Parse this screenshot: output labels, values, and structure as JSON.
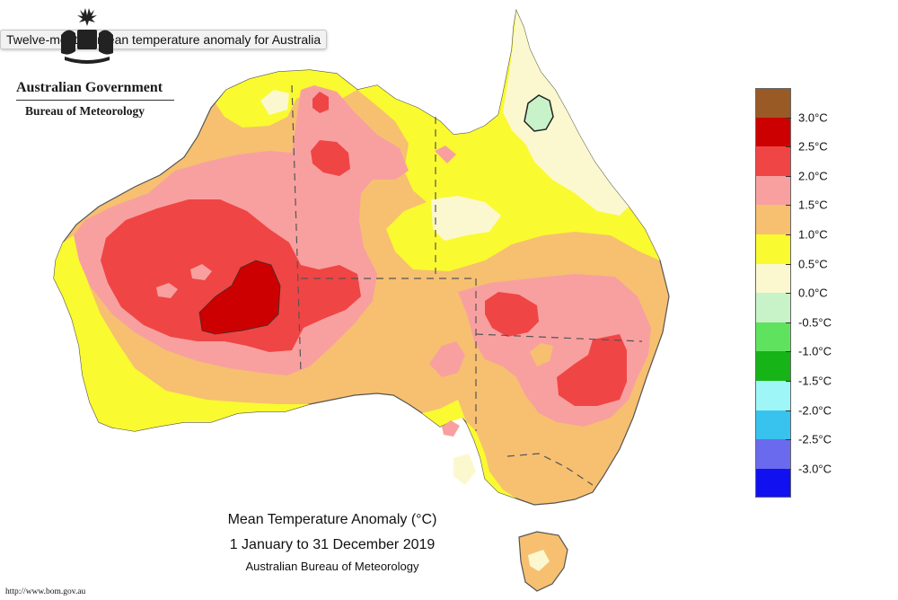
{
  "tooltip": "Twelve-monthly mean temperature anomaly for Australia",
  "logo": {
    "government": "Australian Government",
    "bureau": "Bureau of Meteorology"
  },
  "caption": {
    "title": "Mean Temperature Anomaly (°C)",
    "period": "1 January to 31 December 2019",
    "source": "Australian Bureau of Meteorology"
  },
  "url": "http://www.bom.gov.au",
  "legend": [
    {
      "label": "3.0°C",
      "color": "#9a5a25"
    },
    {
      "label": "2.5°C",
      "color": "#cc0000"
    },
    {
      "label": "2.0°C",
      "color": "#f04545"
    },
    {
      "label": "1.5°C",
      "color": "#f8a0a0"
    },
    {
      "label": "1.0°C",
      "color": "#f6c070"
    },
    {
      "label": "0.5°C",
      "color": "#fafa30"
    },
    {
      "label": "0.0°C",
      "color": "#fbf8d0"
    },
    {
      "label": "-0.5°C",
      "color": "#c8f2c8"
    },
    {
      "label": "-1.0°C",
      "color": "#5fe35f"
    },
    {
      "label": "-1.5°C",
      "color": "#16b416"
    },
    {
      "label": "-2.0°C",
      "color": "#9ff6f6"
    },
    {
      "label": "-2.5°C",
      "color": "#38c2ee"
    },
    {
      "label": "-3.0°C",
      "color": "#6a6aee"
    },
    {
      "label": "",
      "color": "#1010f0"
    }
  ],
  "legend_colors": {
    "above_3": "#9a5a25",
    "2.5_to_3": "#cc0000",
    "2_to_2.5": "#f04545",
    "1.5_to_2": "#f8a0a0",
    "1_to_1.5": "#f6c070",
    "0.5_to_1": "#fafa30",
    "0_to_0.5": "#fbf8d0",
    "-0.5_to_0": "#c8f2c8"
  }
}
